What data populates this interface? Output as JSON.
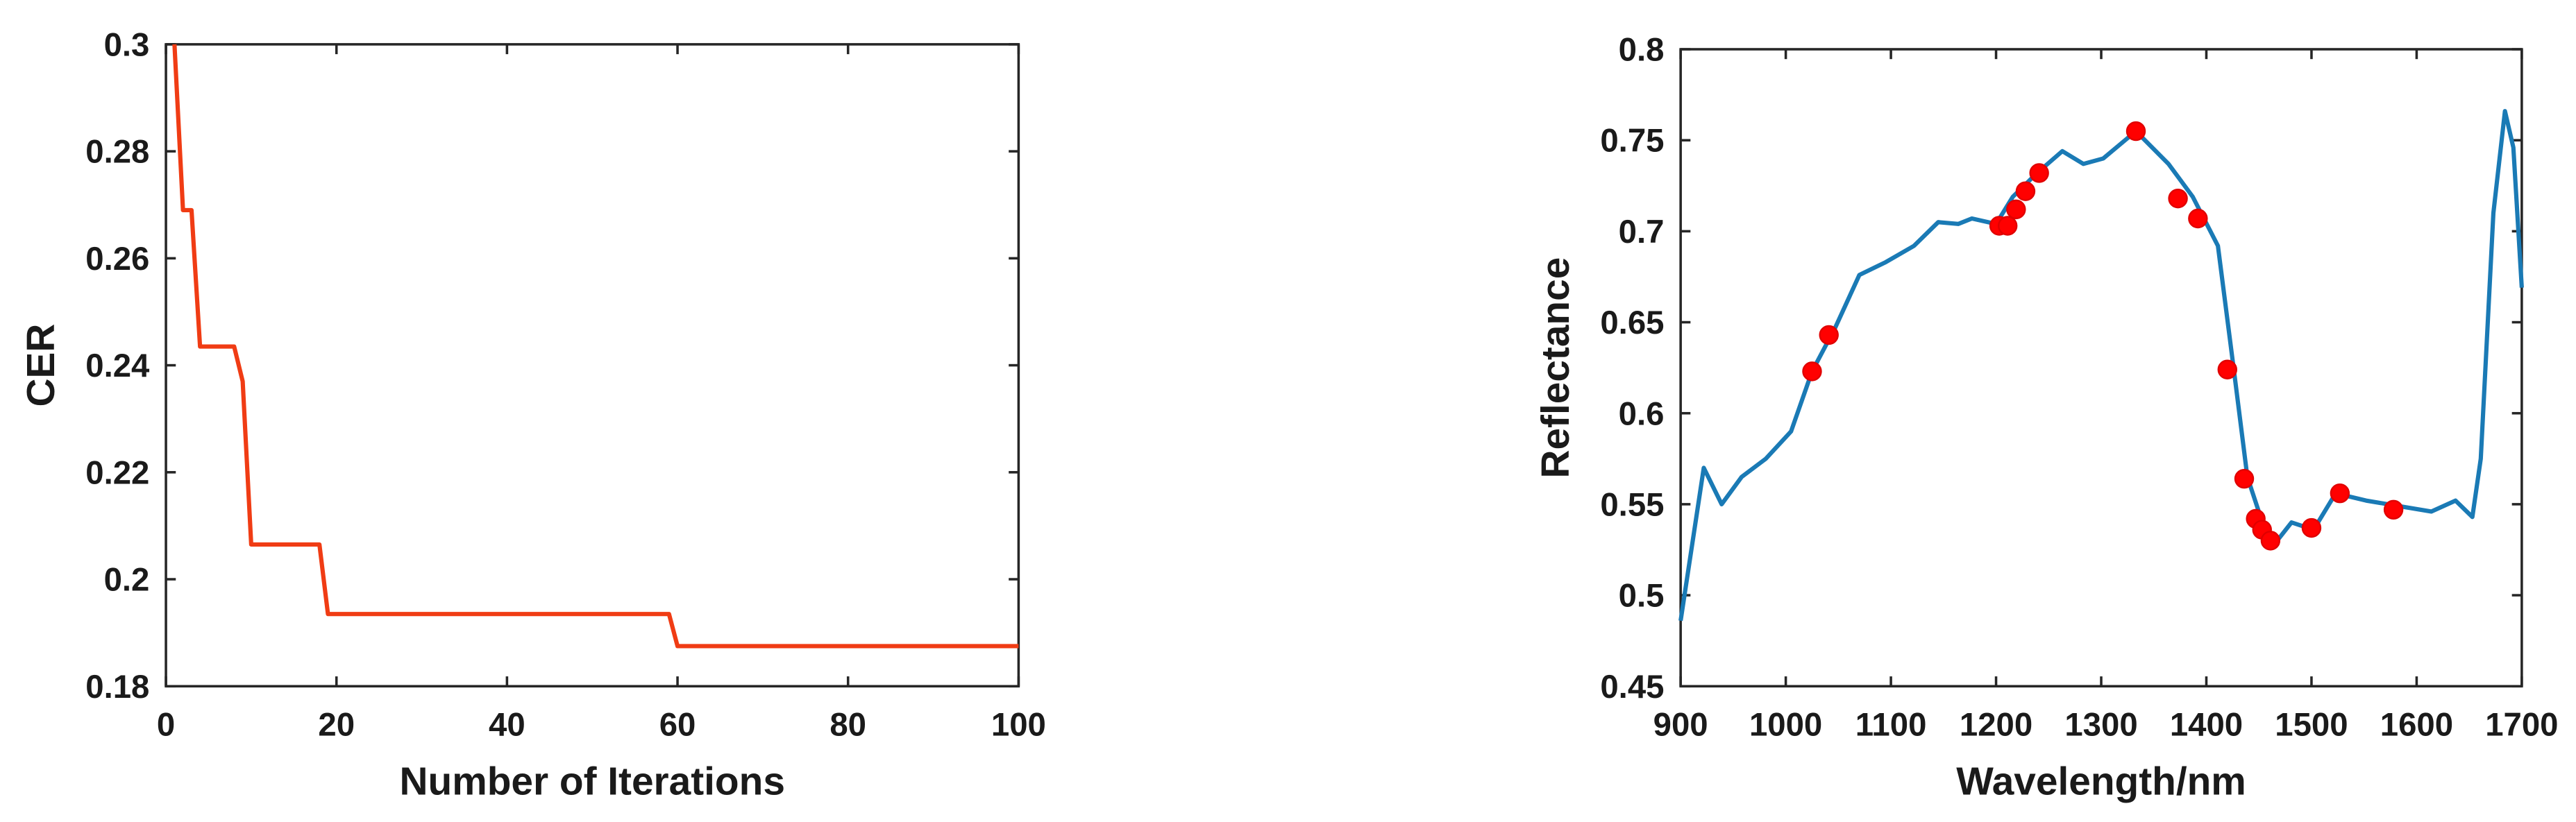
{
  "chart_data": [
    {
      "type": "line",
      "xlabel": "Number of Iterations",
      "ylabel": "CER",
      "xlim": [
        0,
        100
      ],
      "xticks": [
        0,
        20,
        40,
        60,
        80,
        100
      ],
      "ylim": [
        0.18,
        0.3
      ],
      "yticks": [
        0.18,
        0.2,
        0.22,
        0.24,
        0.26,
        0.28,
        0.3
      ],
      "series": [
        {
          "style": "line",
          "color": "#f03c14",
          "x": [
            1,
            2,
            3,
            4,
            8,
            9,
            10,
            18,
            19,
            59,
            60,
            100
          ],
          "values": [
            0.3,
            0.269,
            0.269,
            0.2435,
            0.2435,
            0.237,
            0.2065,
            0.2065,
            0.1935,
            0.1935,
            0.1875,
            0.1875
          ]
        }
      ]
    },
    {
      "type": "line",
      "xlabel": "Wavelength/nm",
      "ylabel": "Reflectance",
      "xlim": [
        900,
        1700
      ],
      "xticks": [
        900,
        1000,
        1100,
        1200,
        1300,
        1400,
        1500,
        1600,
        1700
      ],
      "ylim": [
        0.45,
        0.8
      ],
      "yticks": [
        0.45,
        0.5,
        0.55,
        0.6,
        0.65,
        0.7,
        0.75,
        0.8
      ],
      "series": [
        {
          "style": "line",
          "color": "#1a7ab5",
          "x": [
            900,
            922,
            939,
            958,
            981,
            1005,
            1025,
            1047,
            1070,
            1095,
            1122,
            1145,
            1164,
            1177,
            1200,
            1216,
            1239,
            1263,
            1283,
            1302,
            1333,
            1364,
            1387,
            1411,
            1427,
            1439,
            1455,
            1466,
            1481,
            1502,
            1523,
            1552,
            1583,
            1614,
            1637,
            1653,
            1661,
            1673,
            1684,
            1692,
            1700
          ],
          "values": [
            0.486,
            0.57,
            0.55,
            0.565,
            0.575,
            0.59,
            0.623,
            0.647,
            0.676,
            0.683,
            0.692,
            0.705,
            0.704,
            0.707,
            0.704,
            0.719,
            0.732,
            0.744,
            0.737,
            0.74,
            0.755,
            0.737,
            0.719,
            0.692,
            0.62,
            0.565,
            0.537,
            0.529,
            0.54,
            0.536,
            0.556,
            0.552,
            0.549,
            0.546,
            0.552,
            0.543,
            0.575,
            0.71,
            0.766,
            0.746,
            0.669
          ]
        },
        {
          "style": "markers",
          "color": "#ff0000",
          "x": [
            1025,
            1041,
            1203,
            1211,
            1219,
            1228,
            1241,
            1333,
            1373,
            1392,
            1420,
            1436,
            1447,
            1453,
            1461,
            1500,
            1527,
            1578
          ],
          "values": [
            0.623,
            0.643,
            0.703,
            0.703,
            0.712,
            0.722,
            0.732,
            0.755,
            0.718,
            0.707,
            0.624,
            0.564,
            0.542,
            0.536,
            0.53,
            0.537,
            0.556,
            0.547
          ]
        }
      ]
    }
  ]
}
